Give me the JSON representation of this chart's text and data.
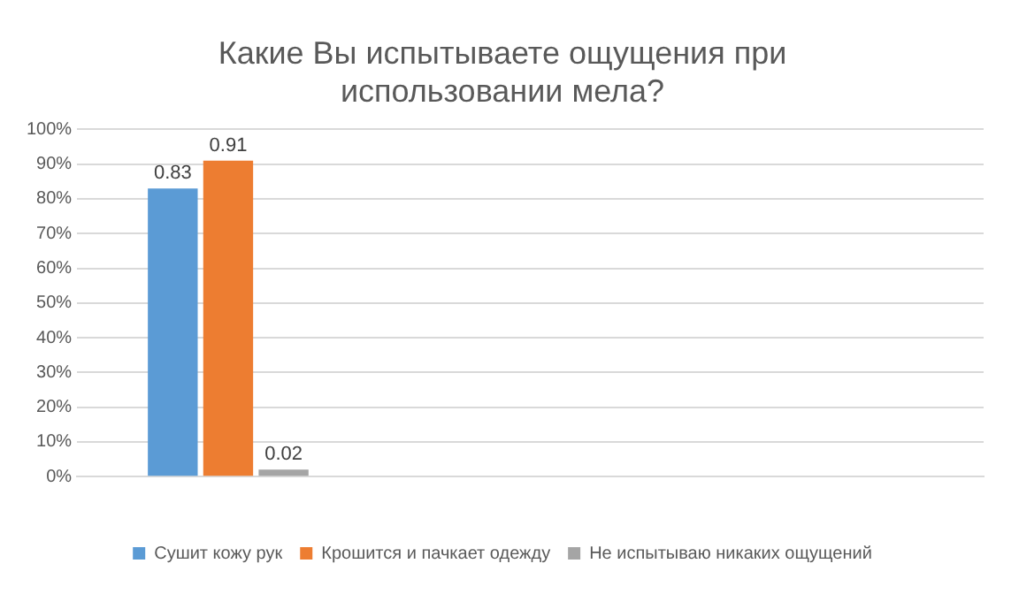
{
  "chart_data": {
    "type": "bar",
    "title": "Какие Вы испытываете ощущения при использовании мела?",
    "categories": [
      null,
      null,
      null
    ],
    "series": [
      {
        "name": "Сушит кожу рук",
        "color": "#5b9bd5",
        "values": [
          0.83,
          null,
          null
        ]
      },
      {
        "name": "Крошится и пачкает одежду",
        "color": "#ed7d31",
        "values": [
          0.91,
          null,
          null
        ]
      },
      {
        "name": "Не испытываю никаких ощущений",
        "color": "#a5a5a5",
        "values": [
          0.02,
          null,
          null
        ]
      }
    ],
    "ylim": [
      0,
      1
    ],
    "yticks": [
      {
        "value": 0,
        "label": "0%"
      },
      {
        "value": 0.1,
        "label": "10%"
      },
      {
        "value": 0.2,
        "label": "20%"
      },
      {
        "value": 0.3,
        "label": "30%"
      },
      {
        "value": 0.4,
        "label": "40%"
      },
      {
        "value": 0.5,
        "label": "50%"
      },
      {
        "value": 0.6,
        "label": "60%"
      },
      {
        "value": 0.7,
        "label": "70%"
      },
      {
        "value": 0.8,
        "label": "80%"
      },
      {
        "value": 0.9,
        "label": "90%"
      },
      {
        "value": 1,
        "label": "100%"
      }
    ],
    "grid": "y",
    "legend": "bottom",
    "data_labels": true
  }
}
